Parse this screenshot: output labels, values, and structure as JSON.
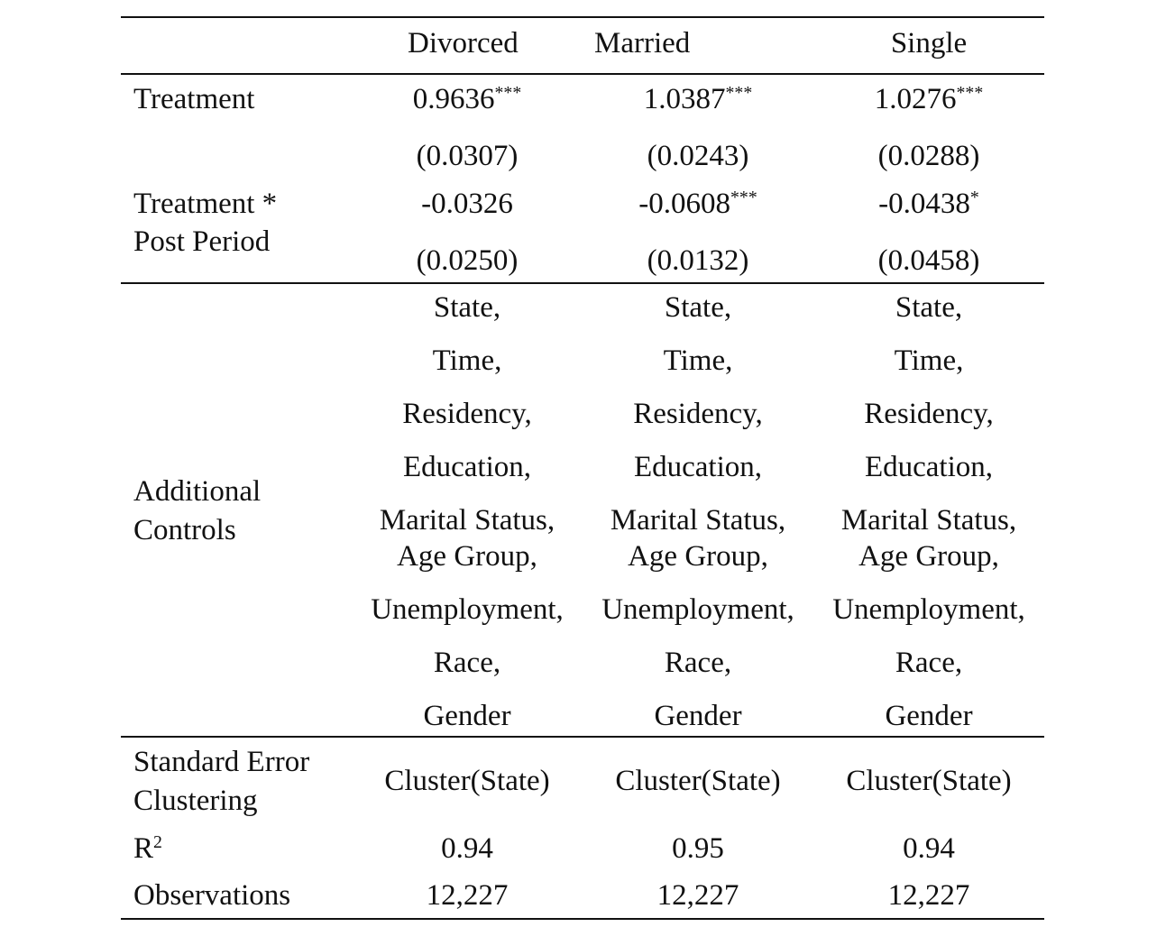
{
  "table": {
    "columns": [
      "Divorced",
      "Married",
      "Single"
    ],
    "rows": {
      "treatment": {
        "label": "Treatment",
        "coef": [
          "0.9636***",
          "1.0387***",
          "1.0276***"
        ],
        "se": [
          "(0.0307)",
          "(0.0243)",
          "(0.0288)"
        ]
      },
      "interaction": {
        "label_line1": "Treatment *",
        "label_line2": "Post Period",
        "coef": [
          "-0.0326",
          "-0.0608***",
          "-0.0438*"
        ],
        "se": [
          "(0.0250)",
          "(0.0132)",
          "(0.0458)"
        ]
      },
      "controls": {
        "label_line1": "Additional",
        "label_line2": "Controls",
        "items": [
          "State,",
          "Time,",
          "Residency,",
          "Education,",
          "Marital Status,",
          "Age Group,",
          "Unemployment,",
          "Race,",
          "Gender"
        ]
      },
      "clustering": {
        "label_line1": "Standard Error",
        "label_line2": "Clustering",
        "values": [
          "Cluster(State)",
          "Cluster(State)",
          "Cluster(State)"
        ]
      },
      "r2": {
        "label": "R",
        "label_sup": "2",
        "values": [
          "0.94",
          "0.95",
          "0.94"
        ]
      },
      "observations": {
        "label": "Observations",
        "values": [
          "12,227",
          "12,227",
          "12,227"
        ]
      }
    }
  }
}
